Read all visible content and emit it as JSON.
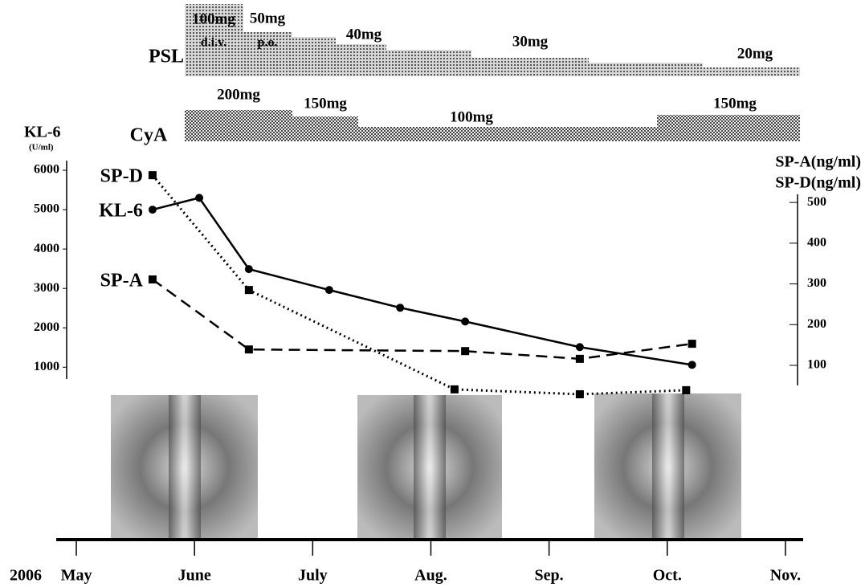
{
  "chart_data": {
    "type": "line",
    "year_label": "2006",
    "xlim": [
      -0.17,
      6.15
    ],
    "xticks": [
      {
        "value": 0,
        "label": "May"
      },
      {
        "value": 1,
        "label": "June"
      },
      {
        "value": 2,
        "label": "July"
      },
      {
        "value": 3,
        "label": "Aug."
      },
      {
        "value": 4,
        "label": "Sep."
      },
      {
        "value": 5,
        "label": "Oct."
      },
      {
        "value": 6,
        "label": "Nov."
      }
    ],
    "ylabel": "KL-6",
    "ylabel_unit": "(U/ml)",
    "ylim": [
      700,
      6245
    ],
    "yticks": [
      1000,
      2000,
      3000,
      4000,
      5000,
      6000
    ],
    "y2label": [
      "SP-A(ng/ml)",
      "SP-D(ng/ml)"
    ],
    "y2lim": [
      25,
      520
    ],
    "y2ticks": [
      100,
      200,
      300,
      400,
      500
    ],
    "series": [
      {
        "name": "KL-6",
        "color": "#000000",
        "axis": "y",
        "dash": "solid",
        "marker": "circle",
        "x": [
          0.645,
          1.04,
          1.46,
          2.14,
          2.74,
          3.29,
          4.26,
          5.21
        ],
        "values": [
          5000,
          5300,
          3490,
          2960,
          2510,
          2160,
          1510,
          1060
        ]
      },
      {
        "name": "SP-A",
        "color": "#000000",
        "axis": "y2",
        "dash": "dashed",
        "marker": "square",
        "x": [
          0.645,
          1.46,
          3.29,
          4.26,
          5.21
        ],
        "values": [
          311,
          139,
          135,
          116,
          153
        ]
      },
      {
        "name": "SP-D",
        "color": "#000000",
        "axis": "y2",
        "dash": "dotted",
        "marker": "square",
        "x": [
          0.645,
          1.46,
          3.2,
          4.26,
          5.16
        ],
        "values": [
          567,
          285,
          41,
          29,
          39
        ]
      }
    ],
    "psl": {
      "label": "PSL",
      "doses": [
        "100mg",
        "d.i.v.",
        "50mg",
        "p.o.",
        "40mg",
        "30mg",
        "20mg"
      ]
    },
    "cya": {
      "label": "CyA",
      "doses": [
        "200mg",
        "150mg",
        "100mg",
        "150mg"
      ]
    }
  }
}
